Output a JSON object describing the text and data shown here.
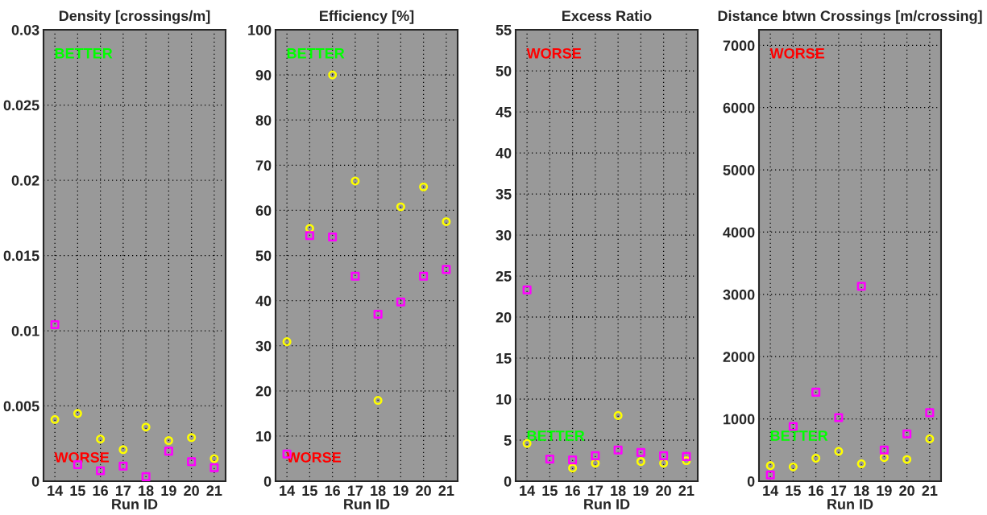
{
  "chart_data": [
    {
      "type": "scatter",
      "title": "Density [crossings/m]",
      "xlabel": "Run ID",
      "x": [
        14,
        15,
        16,
        17,
        18,
        19,
        20,
        21
      ],
      "xlim": [
        13.5,
        21.5
      ],
      "xticks": [
        14,
        15,
        16,
        17,
        18,
        19,
        20,
        21
      ],
      "ylim": [
        0,
        0.03
      ],
      "yticks": [
        0,
        0.005,
        0.01,
        0.015,
        0.02,
        0.025,
        0.03
      ],
      "grid": true,
      "series": [
        {
          "color": "#ffff00",
          "marker": "circle",
          "values": [
            0.0041,
            0.0045,
            0.0028,
            0.0021,
            0.0036,
            0.0027,
            0.0029,
            0.0015
          ]
        },
        {
          "color": "#ff00ff",
          "marker": "square",
          "values": [
            0.0104,
            0.0011,
            0.0007,
            0.001,
            0.0003,
            0.002,
            0.0013,
            0.0009
          ]
        }
      ],
      "annotations": [
        "BETTER",
        "WORSE"
      ]
    },
    {
      "type": "scatter",
      "title": "Efficiency [%]",
      "xlabel": "Run ID",
      "x": [
        14,
        15,
        16,
        17,
        18,
        19,
        20,
        21
      ],
      "xlim": [
        13.5,
        21.5
      ],
      "xticks": [
        14,
        15,
        16,
        17,
        18,
        19,
        20,
        21
      ],
      "ylim": [
        0,
        100
      ],
      "yticks": [
        0,
        10,
        20,
        30,
        40,
        50,
        60,
        70,
        80,
        90,
        100
      ],
      "grid": true,
      "series": [
        {
          "color": "#ffff00",
          "marker": "circle",
          "values": [
            30.9,
            56.0,
            90.0,
            66.5,
            17.9,
            60.8,
            65.2,
            57.5
          ]
        },
        {
          "color": "#ff00ff",
          "marker": "square",
          "values": [
            6.0,
            54.4,
            54.1,
            45.4,
            37.0,
            39.7,
            45.4,
            46.9
          ]
        }
      ],
      "annotations": [
        "BETTER",
        "WORSE"
      ]
    },
    {
      "type": "scatter",
      "title": "Excess Ratio",
      "xlabel": "Run ID",
      "x": [
        14,
        15,
        16,
        17,
        18,
        19,
        20,
        21
      ],
      "xlim": [
        13.5,
        21.5
      ],
      "xticks": [
        14,
        15,
        16,
        17,
        18,
        19,
        20,
        21
      ],
      "ylim": [
        0,
        55
      ],
      "yticks": [
        0,
        5,
        10,
        15,
        20,
        25,
        30,
        35,
        40,
        45,
        50,
        55
      ],
      "grid": true,
      "series": [
        {
          "color": "#ffff00",
          "marker": "circle",
          "values": [
            4.6,
            null,
            1.6,
            2.2,
            8.0,
            2.4,
            2.2,
            2.5
          ]
        },
        {
          "color": "#ff00ff",
          "marker": "square",
          "values": [
            23.3,
            2.7,
            2.6,
            3.1,
            3.8,
            3.5,
            3.1,
            3.0
          ]
        }
      ],
      "annotations": [
        "WORSE",
        "BETTER"
      ]
    },
    {
      "type": "scatter",
      "title": "Distance btwn Crossings [m/crossing]",
      "xlabel": "Run ID",
      "x": [
        14,
        15,
        16,
        17,
        18,
        19,
        20,
        21
      ],
      "xlim": [
        13.5,
        21.5
      ],
      "xticks": [
        14,
        15,
        16,
        17,
        18,
        19,
        20,
        21
      ],
      "ylim": [
        0,
        7250
      ],
      "yticks": [
        0,
        1000,
        2000,
        3000,
        4000,
        5000,
        6000,
        7000
      ],
      "grid": true,
      "series": [
        {
          "color": "#ffff00",
          "marker": "circle",
          "values": [
            250,
            230,
            370,
            480,
            280,
            380,
            350,
            680
          ]
        },
        {
          "color": "#ff00ff",
          "marker": "square",
          "values": [
            100,
            880,
            1430,
            1020,
            3130,
            500,
            760,
            1100
          ]
        }
      ],
      "annotations": [
        "WORSE",
        "BETTER"
      ]
    }
  ]
}
